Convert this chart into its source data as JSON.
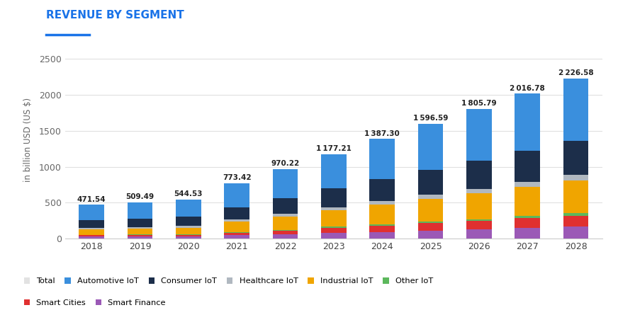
{
  "title": "REVENUE BY SEGMENT",
  "ylabel": "in billion USD (US $)",
  "years": [
    2018,
    2019,
    2020,
    2021,
    2022,
    2023,
    2024,
    2025,
    2026,
    2027,
    2028
  ],
  "totals": [
    471.54,
    509.49,
    544.53,
    773.42,
    970.22,
    1177.21,
    1387.3,
    1596.59,
    1805.79,
    2016.78,
    2226.58
  ],
  "segments": {
    "Smart Finance": [
      28,
      30,
      32,
      50,
      65,
      80,
      95,
      110,
      130,
      150,
      165
    ],
    "Smart Cities": [
      20,
      22,
      24,
      35,
      45,
      70,
      85,
      105,
      115,
      135,
      155
    ],
    "Other IoT": [
      6,
      7,
      8,
      10,
      12,
      15,
      18,
      22,
      26,
      30,
      35
    ],
    "Industrial IoT": [
      75,
      85,
      90,
      140,
      185,
      230,
      275,
      315,
      360,
      405,
      455
    ],
    "Healthcare IoT": [
      18,
      20,
      22,
      30,
      38,
      45,
      52,
      58,
      64,
      70,
      76
    ],
    "Consumer IoT": [
      110,
      118,
      128,
      170,
      215,
      260,
      300,
      345,
      390,
      430,
      475
    ],
    "Automotive IoT": [
      214,
      227,
      240,
      338,
      410,
      477,
      562,
      642,
      721,
      797,
      866
    ]
  },
  "segment_colors": {
    "Smart Finance": "#9b59b6",
    "Smart Cities": "#e03030",
    "Other IoT": "#5cb85c",
    "Industrial IoT": "#f0a500",
    "Healthcare IoT": "#b0b8c0",
    "Consumer IoT": "#1c2e4a",
    "Automotive IoT": "#3a8fdd"
  },
  "title_color": "#1a73e8",
  "background_color": "#ffffff",
  "ylim": [
    0,
    2750
  ],
  "yticks": [
    0,
    500,
    1000,
    1500,
    2000,
    2500
  ]
}
